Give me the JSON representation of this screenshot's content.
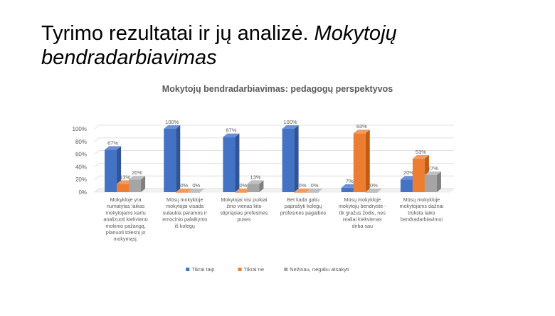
{
  "slide": {
    "title_main": "Tyrimo rezultatai ir jų analizė. ",
    "title_italic": "Mokytojų bendradarbiavimas"
  },
  "chart_data": {
    "type": "bar",
    "title": "Mokytojų bendradarbiavimas: pedagogų perspektyvos",
    "categories": [
      [
        "Mokykloje yra",
        "numatytas laikas",
        "mokytojams kartu",
        "analizuoti kiekvieno",
        "mokinio pažangą,",
        "planuoti tolesnį jo",
        "mokymąsį."
      ],
      [
        "Mūsų mokykloje",
        "mokytojai visada",
        "sulaukia paramos ir",
        "emocinio palaikymo",
        "iš kolegų"
      ],
      [
        "Mokytojai visi puikiai",
        "žino vienas kito",
        "stipriąsias profesines",
        "puses"
      ],
      [
        "Bet kada galiu",
        "paprašyti kolegų",
        "profesinės pagalbos"
      ],
      [
        "Mūsų mokykloje",
        "mokytojų bendrystė -",
        "tik gražus žodis, nes",
        "realiai kiekvienas",
        "dirba sau"
      ],
      [
        "Mūsų mokykloje",
        "mokytojams dažnai",
        "trūksta laiko",
        "bendradarbiavimui"
      ]
    ],
    "series": [
      {
        "name": "Tikrai taip",
        "values": [
          67,
          100,
          87,
          100,
          7,
          20
        ],
        "labels": [
          "67%",
          "100%",
          "87%",
          "100%",
          "7%",
          "20%"
        ]
      },
      {
        "name": "Tikrai ne",
        "values": [
          13,
          0,
          0,
          0,
          93,
          53
        ],
        "labels": [
          "13%",
          "0%",
          "0%",
          "0%",
          "93%",
          "53%"
        ]
      },
      {
        "name": "Nežinau, negaliu atsakyti",
        "values": [
          20,
          0,
          13,
          0,
          0,
          27
        ],
        "labels": [
          "20%",
          "0%",
          "13%",
          "0%",
          "0%",
          "27%"
        ]
      }
    ],
    "yticks": [
      "0%",
      "20%",
      "40%",
      "60%",
      "80%",
      "100%"
    ],
    "ylim": [
      0,
      100
    ],
    "grid": true,
    "legend_position": "bottom",
    "colors": {
      "series": [
        "#4472C4",
        "#ED7D31",
        "#A5A5A5"
      ],
      "series_side": [
        "#2F5597",
        "#C55A11",
        "#7F7F7F"
      ],
      "series_top": [
        "#6A8FD4",
        "#F29B5E",
        "#C0C0C0"
      ],
      "grid": "#D9D9D9",
      "text": "#595959"
    }
  }
}
